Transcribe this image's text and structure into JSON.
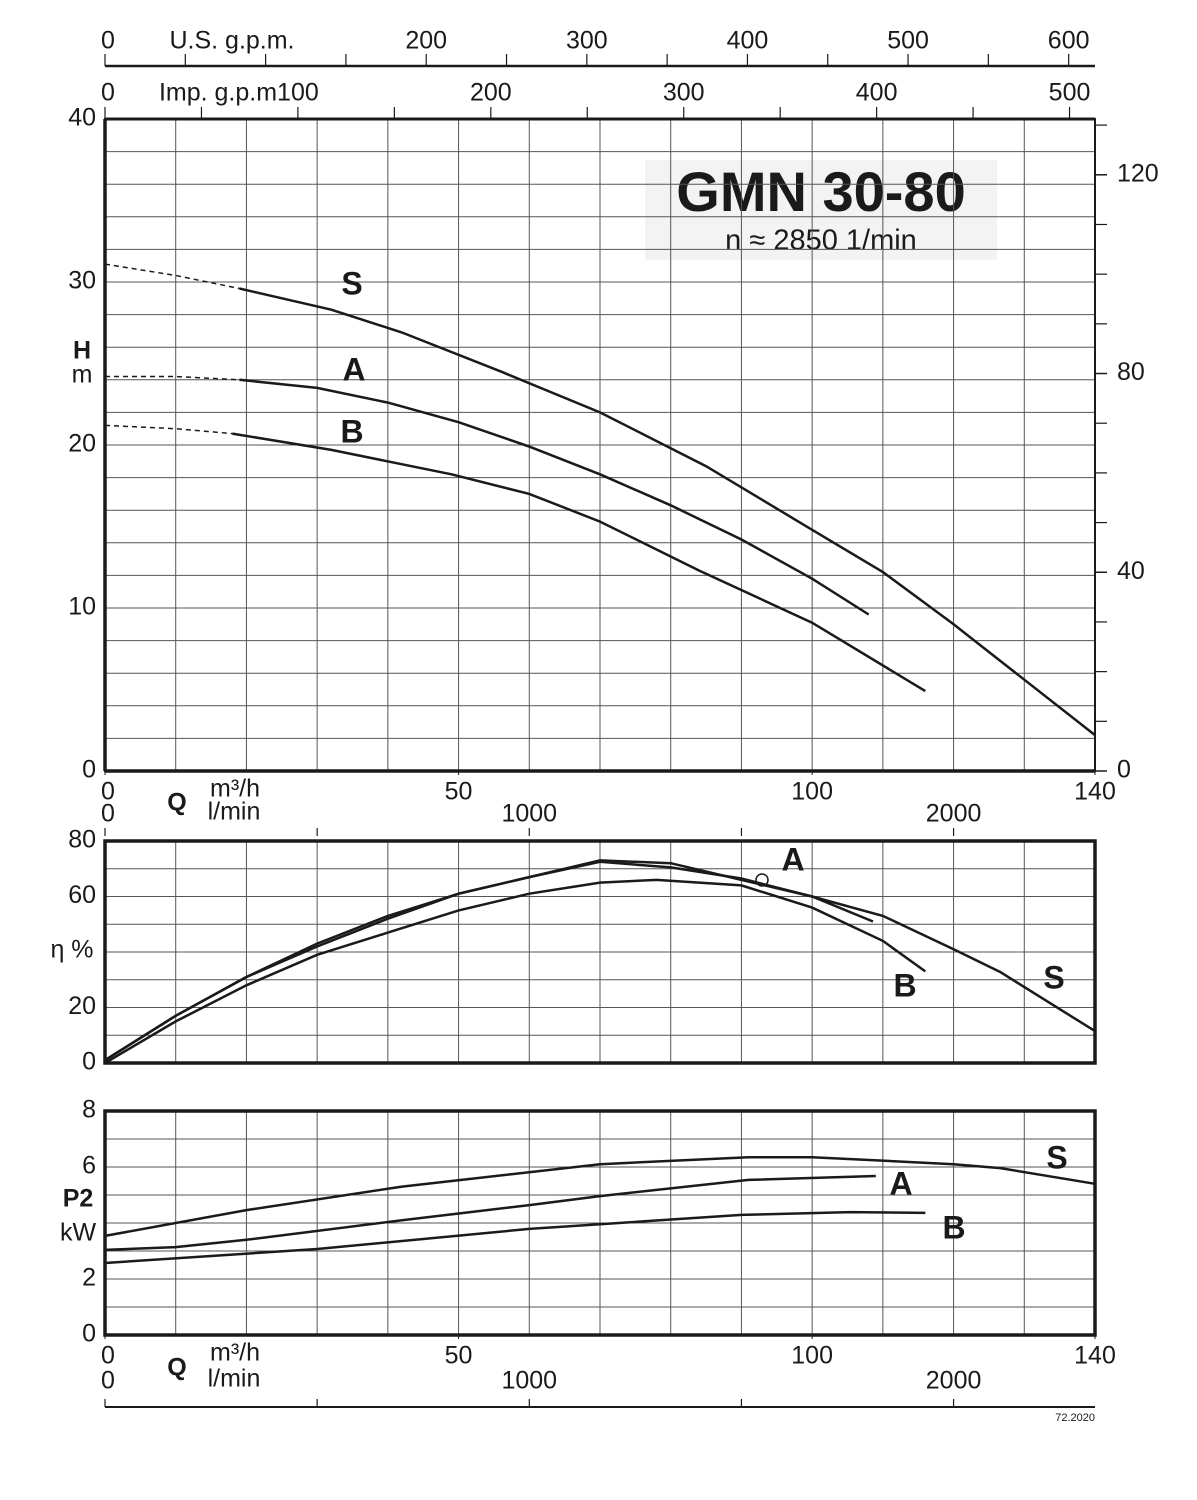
{
  "chart_data": [
    {
      "type": "line",
      "title": "GMN 30-80",
      "subtitle": "n ≈ 2850 1/min",
      "ylabel": "H",
      "yunit": "m",
      "xlabel": "Q",
      "xunit": "m³/h",
      "xlim": [
        0,
        140
      ],
      "xticks": [
        0,
        50,
        100,
        140
      ],
      "xgrid": [
        10,
        20,
        30,
        40,
        50,
        60,
        70,
        80,
        90,
        100,
        110,
        120,
        130
      ],
      "ylim": [
        0,
        40
      ],
      "yticks": [
        0,
        10,
        20,
        30,
        40
      ],
      "ygrid": [
        2,
        4,
        6,
        8,
        12,
        14,
        16,
        18,
        22,
        24,
        26,
        28,
        32,
        34,
        36,
        38
      ],
      "y2lim": [
        0,
        131.23
      ],
      "y2ticks": [
        0,
        40,
        80,
        120
      ],
      "y2minor": [
        10,
        20,
        30,
        50,
        60,
        70,
        90,
        100,
        110,
        130
      ],
      "top_axes": [
        {
          "label": "U.S. g.p.m.",
          "xlim": [
            0,
            616.4
          ],
          "xticks": [
            0,
            200,
            300,
            400,
            500,
            600
          ],
          "minor": [
            50,
            100,
            150,
            250,
            350,
            450,
            550
          ]
        },
        {
          "label": "Imp. g.p.m",
          "xlim": [
            0,
            513.2
          ],
          "xticks": [
            0,
            100,
            200,
            300,
            400,
            500
          ],
          "minor": [
            50,
            150,
            250,
            350,
            450
          ]
        }
      ],
      "x2label": "l/min",
      "x2lim": [
        0,
        2333.3
      ],
      "x2ticks": [
        0,
        1000,
        2000
      ],
      "x2minor": [
        500,
        1500
      ],
      "series": [
        {
          "name": "S",
          "color": "#1a1a1a",
          "dashed_x": [
            0,
            10,
            19
          ],
          "dashed_values": [
            31.1,
            30.4,
            29.6
          ],
          "x": [
            19,
            32,
            42,
            56,
            70,
            85,
            100,
            110,
            120,
            130,
            140
          ],
          "values": [
            29.6,
            28.3,
            26.9,
            24.5,
            22.0,
            18.7,
            14.8,
            12.2,
            9.0,
            5.6,
            2.2
          ]
        },
        {
          "name": "A",
          "color": "#1a1a1a",
          "dashed_x": [
            0,
            10,
            19
          ],
          "dashed_values": [
            24.2,
            24.2,
            24.0
          ],
          "x": [
            19,
            30,
            40,
            50,
            60,
            70,
            80,
            90,
            100,
            108
          ],
          "values": [
            24.0,
            23.5,
            22.6,
            21.4,
            19.9,
            18.2,
            16.3,
            14.2,
            11.8,
            9.6
          ]
        },
        {
          "name": "B",
          "color": "#1a1a1a",
          "dashed_x": [
            0,
            10,
            18
          ],
          "dashed_values": [
            21.2,
            21.0,
            20.7
          ],
          "x": [
            18,
            32,
            49,
            60,
            70,
            84,
            100,
            116
          ],
          "values": [
            20.7,
            19.7,
            18.2,
            17.0,
            15.3,
            12.3,
            9.1,
            4.9
          ]
        }
      ]
    },
    {
      "type": "line",
      "ylabel": "η %",
      "xlim": [
        0,
        140
      ],
      "xgrid": [
        10,
        20,
        30,
        40,
        50,
        60,
        70,
        80,
        90,
        100,
        110,
        120,
        130
      ],
      "ylim": [
        0,
        80
      ],
      "yticks": [
        0,
        20,
        60,
        80
      ],
      "ygrid": [
        10,
        30,
        40,
        50,
        70
      ],
      "series": [
        {
          "name": "A",
          "color": "#1a1a1a",
          "x": [
            0,
            10,
            20,
            30,
            40,
            50,
            60,
            70,
            80,
            90,
            100,
            108.6
          ],
          "values": [
            1,
            17,
            31,
            42,
            52,
            61,
            67,
            72.5,
            70.5,
            66.5,
            60,
            51
          ]
        },
        {
          "name": "B",
          "color": "#1a1a1a",
          "x": [
            0,
            10,
            20,
            30,
            40,
            50,
            60,
            70,
            78,
            90,
            100,
            110,
            116
          ],
          "values": [
            0,
            15,
            28,
            39,
            47,
            55,
            61,
            65,
            66,
            64,
            56,
            44,
            33
          ]
        },
        {
          "name": "S",
          "color": "#1a1a1a",
          "x": [
            0,
            10,
            20,
            30,
            40,
            50,
            60,
            70,
            80,
            90,
            100,
            110,
            120,
            126.6,
            140
          ],
          "values": [
            1,
            17,
            31,
            43,
            53,
            61,
            67,
            73,
            72,
            66,
            60,
            53,
            41,
            32.8,
            11.5
          ]
        }
      ]
    },
    {
      "type": "line",
      "ylabel": "P2",
      "yunit": "kW",
      "xlabel": "Q",
      "xunit": "m³/h",
      "xlim": [
        0,
        140
      ],
      "xticks": [
        0,
        50,
        100,
        140
      ],
      "xgrid": [
        10,
        20,
        30,
        40,
        50,
        60,
        70,
        80,
        90,
        100,
        110,
        120,
        130
      ],
      "ylim": [
        0,
        8
      ],
      "yticks": [
        0,
        2,
        6,
        8
      ],
      "ygrid": [
        1,
        3,
        4,
        5,
        7
      ],
      "x2label": "l/min",
      "x2lim": [
        0,
        2333.3
      ],
      "x2ticks": [
        0,
        1000,
        2000
      ],
      "x2minor": [
        500,
        1500
      ],
      "series": [
        {
          "name": "S",
          "color": "#1a1a1a",
          "x": [
            0,
            20,
            42,
            70,
            91,
            100,
            120,
            126.6,
            140
          ],
          "values": [
            3.54,
            4.46,
            5.3,
            6.1,
            6.35,
            6.35,
            6.1,
            5.96,
            5.4
          ]
        },
        {
          "name": "A",
          "color": "#1a1a1a",
          "x": [
            0,
            10,
            20,
            42,
            60,
            70,
            91,
            109
          ],
          "values": [
            3.04,
            3.14,
            3.4,
            4.1,
            4.64,
            4.96,
            5.54,
            5.68
          ]
        },
        {
          "name": "B",
          "color": "#1a1a1a",
          "x": [
            0,
            30,
            60,
            90,
            105.4,
            116
          ],
          "values": [
            2.57,
            3.07,
            3.79,
            4.29,
            4.39,
            4.36
          ]
        }
      ]
    }
  ],
  "footer": "72.2020"
}
